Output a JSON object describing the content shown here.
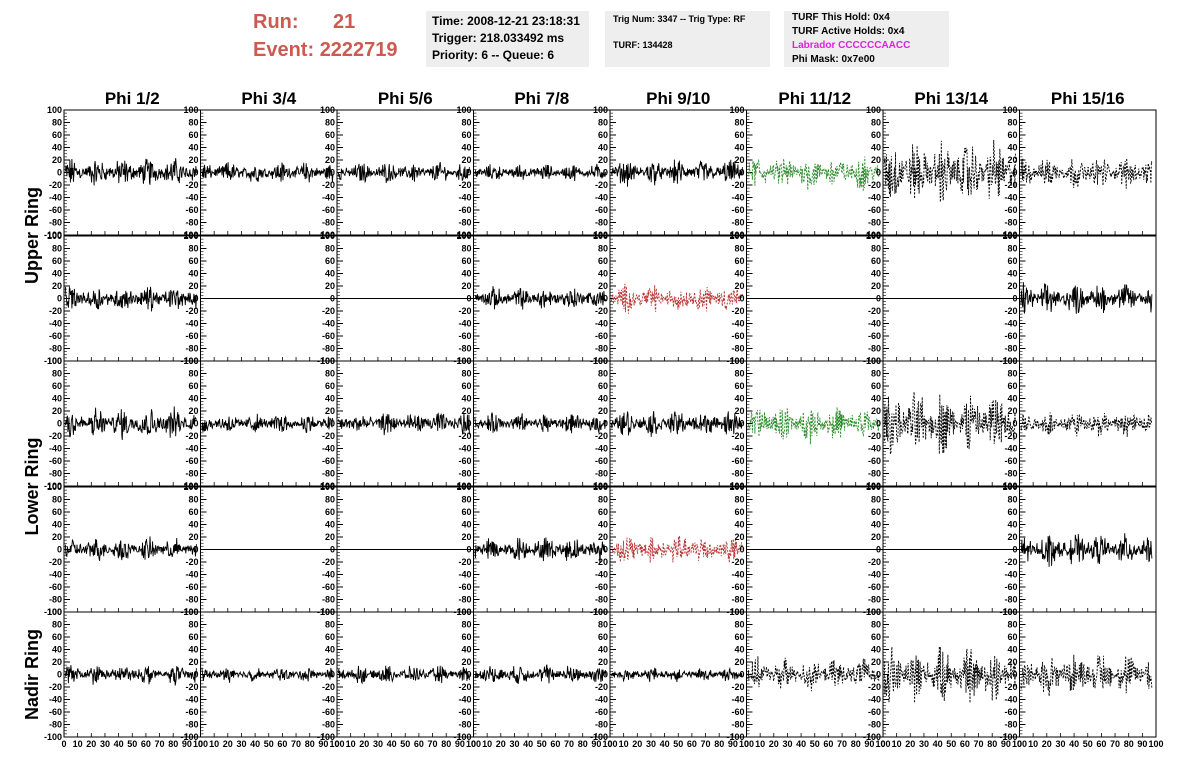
{
  "header": {
    "run_label": "Run:",
    "run_value": "21",
    "event_label": "Event:",
    "event_value": "2222719",
    "time": "Time: 2008-12-21 23:18:31",
    "trigger": "Trigger: 218.033492 ms",
    "priority": "Priority: 6 -- Queue: 6",
    "trig_num": "Trig Num: 3347 -- Trig Type: RF",
    "turf": "TURF: 134428",
    "turf_this_hold": "TURF This Hold: 0x4",
    "turf_active_holds": "TURF Active Holds: 0x4",
    "labrador": "Labrador CCCCCCAACC",
    "phi_mask": "Phi Mask: 0x7e00"
  },
  "chart_data": {
    "type": "line",
    "columns": [
      "Phi 1/2",
      "Phi 3/4",
      "Phi 5/6",
      "Phi 7/8",
      "Phi 9/10",
      "Phi 11/12",
      "Phi 13/14",
      "Phi 15/16"
    ],
    "ring_labels": [
      "Upper Ring",
      "Lower Ring",
      "Nadir Ring"
    ],
    "ylim": [
      -100,
      100
    ],
    "xlim": [
      0,
      100
    ],
    "y_ticks": [
      -100,
      -80,
      -60,
      -40,
      -20,
      0,
      20,
      40,
      60,
      80,
      100
    ],
    "x_ticks": [
      0,
      10,
      20,
      30,
      40,
      50,
      60,
      70,
      80,
      90,
      100
    ],
    "x_tick_labels": [
      "0",
      "10",
      "20",
      "30",
      "40",
      "50",
      "60",
      "70",
      "80",
      "90",
      "100"
    ],
    "colors": {
      "solid": "#000000",
      "green": "#2a8a2a",
      "red": "#b83232",
      "dashed": "#000000"
    },
    "panels": [
      [
        "solid",
        "solid",
        "solid",
        "solid",
        "solid",
        "green",
        "dashed",
        "dashed"
      ],
      [
        "solid",
        "flat",
        "flat",
        "solid",
        "red",
        "flat",
        "flat",
        "solid"
      ],
      [
        "solid",
        "solid",
        "solid",
        "solid",
        "solid",
        "green",
        "dashed",
        "dashed"
      ],
      [
        "solid",
        "flat",
        "flat",
        "solid",
        "red",
        "flat",
        "flat",
        "solid"
      ],
      [
        "solid",
        "solid",
        "solid",
        "solid",
        "solid",
        "dashed",
        "dashed",
        "dashed"
      ]
    ],
    "amplitudes": [
      [
        20,
        15,
        14,
        12,
        18,
        25,
        45,
        22
      ],
      [
        18,
        0,
        0,
        16,
        20,
        0,
        0,
        22
      ],
      [
        22,
        14,
        16,
        14,
        18,
        25,
        45,
        18
      ],
      [
        16,
        0,
        0,
        18,
        22,
        0,
        0,
        22
      ],
      [
        14,
        10,
        12,
        14,
        10,
        22,
        38,
        30
      ]
    ]
  }
}
